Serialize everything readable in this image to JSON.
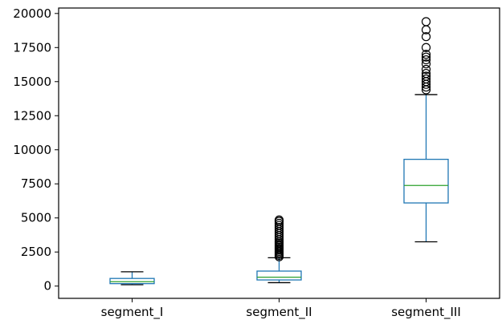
{
  "chart_data": {
    "type": "box",
    "categories": [
      "segment_I",
      "segment_II",
      "segment_III"
    ],
    "series": [
      {
        "category": "segment_I",
        "whisker_low": 100,
        "q1": 180,
        "median": 320,
        "q3": 560,
        "whisker_high": 1050,
        "outliers": []
      },
      {
        "category": "segment_II",
        "whisker_low": 250,
        "q1": 450,
        "median": 650,
        "q3": 1100,
        "whisker_high": 2080,
        "outliers": [
          2150,
          2250,
          2350,
          2450,
          2550,
          2650,
          2750,
          2850,
          2950,
          3050,
          3150,
          3250,
          3400,
          3550,
          3700,
          3850,
          4000,
          4150,
          4300,
          4450,
          4600,
          4750,
          4850
        ]
      },
      {
        "category": "segment_III",
        "whisker_low": 3250,
        "q1": 6100,
        "median": 7380,
        "q3": 9300,
        "whisker_high": 14050,
        "outliers": [
          14400,
          14600,
          14800,
          15000,
          15200,
          15400,
          15600,
          15900,
          16300,
          16600,
          16800,
          17000,
          17500,
          18300,
          18800,
          19400
        ]
      }
    ],
    "y_ticks": [
      0,
      2500,
      5000,
      7500,
      10000,
      12500,
      15000,
      17500,
      20000
    ],
    "y_tick_labels": [
      "0",
      "2500",
      "5000",
      "7500",
      "10000",
      "12500",
      "15000",
      "17500",
      "20000"
    ],
    "ylim": [
      -900,
      20400
    ],
    "grid": false,
    "colors": {
      "box": "#1f77b4",
      "median": "#2ca02c",
      "whisker": "#1f77b4",
      "cap": "#000000",
      "outlier": "#000000",
      "axes": "#000000"
    }
  }
}
